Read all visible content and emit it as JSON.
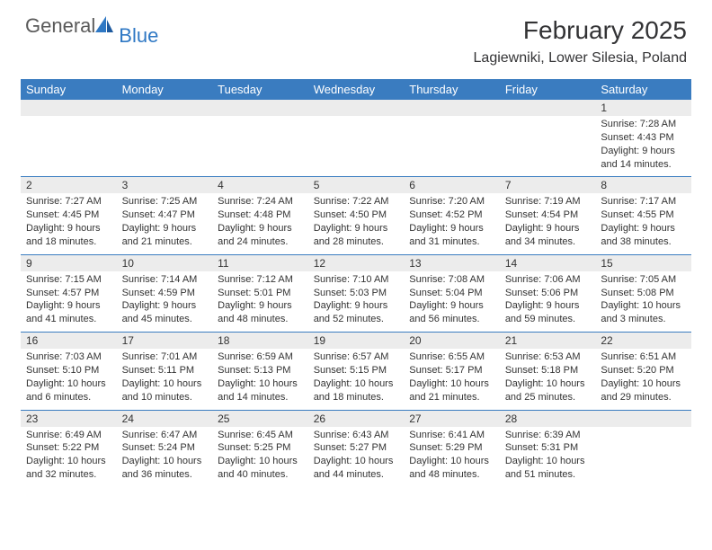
{
  "brand": {
    "text1": "General",
    "text2": "Blue"
  },
  "colors": {
    "header_bg": "#3a7cc0",
    "daynum_bg": "#ececec",
    "empty_bg": "#f1f1f1",
    "rule": "#3a7cc0",
    "text": "#333333",
    "brand_gray": "#5a5a5a",
    "brand_blue": "#2f78c4"
  },
  "title": "February 2025",
  "location": "Lagiewniki, Lower Silesia, Poland",
  "day_headers": [
    "Sunday",
    "Monday",
    "Tuesday",
    "Wednesday",
    "Thursday",
    "Friday",
    "Saturday"
  ],
  "weeks": [
    {
      "nums": [
        "",
        "",
        "",
        "",
        "",
        "",
        "1"
      ],
      "cells": [
        "",
        "",
        "",
        "",
        "",
        "",
        "Sunrise: 7:28 AM\nSunset: 4:43 PM\nDaylight: 9 hours and 14 minutes."
      ]
    },
    {
      "nums": [
        "2",
        "3",
        "4",
        "5",
        "6",
        "7",
        "8"
      ],
      "cells": [
        "Sunrise: 7:27 AM\nSunset: 4:45 PM\nDaylight: 9 hours and 18 minutes.",
        "Sunrise: 7:25 AM\nSunset: 4:47 PM\nDaylight: 9 hours and 21 minutes.",
        "Sunrise: 7:24 AM\nSunset: 4:48 PM\nDaylight: 9 hours and 24 minutes.",
        "Sunrise: 7:22 AM\nSunset: 4:50 PM\nDaylight: 9 hours and 28 minutes.",
        "Sunrise: 7:20 AM\nSunset: 4:52 PM\nDaylight: 9 hours and 31 minutes.",
        "Sunrise: 7:19 AM\nSunset: 4:54 PM\nDaylight: 9 hours and 34 minutes.",
        "Sunrise: 7:17 AM\nSunset: 4:55 PM\nDaylight: 9 hours and 38 minutes."
      ]
    },
    {
      "nums": [
        "9",
        "10",
        "11",
        "12",
        "13",
        "14",
        "15"
      ],
      "cells": [
        "Sunrise: 7:15 AM\nSunset: 4:57 PM\nDaylight: 9 hours and 41 minutes.",
        "Sunrise: 7:14 AM\nSunset: 4:59 PM\nDaylight: 9 hours and 45 minutes.",
        "Sunrise: 7:12 AM\nSunset: 5:01 PM\nDaylight: 9 hours and 48 minutes.",
        "Sunrise: 7:10 AM\nSunset: 5:03 PM\nDaylight: 9 hours and 52 minutes.",
        "Sunrise: 7:08 AM\nSunset: 5:04 PM\nDaylight: 9 hours and 56 minutes.",
        "Sunrise: 7:06 AM\nSunset: 5:06 PM\nDaylight: 9 hours and 59 minutes.",
        "Sunrise: 7:05 AM\nSunset: 5:08 PM\nDaylight: 10 hours and 3 minutes."
      ]
    },
    {
      "nums": [
        "16",
        "17",
        "18",
        "19",
        "20",
        "21",
        "22"
      ],
      "cells": [
        "Sunrise: 7:03 AM\nSunset: 5:10 PM\nDaylight: 10 hours and 6 minutes.",
        "Sunrise: 7:01 AM\nSunset: 5:11 PM\nDaylight: 10 hours and 10 minutes.",
        "Sunrise: 6:59 AM\nSunset: 5:13 PM\nDaylight: 10 hours and 14 minutes.",
        "Sunrise: 6:57 AM\nSunset: 5:15 PM\nDaylight: 10 hours and 18 minutes.",
        "Sunrise: 6:55 AM\nSunset: 5:17 PM\nDaylight: 10 hours and 21 minutes.",
        "Sunrise: 6:53 AM\nSunset: 5:18 PM\nDaylight: 10 hours and 25 minutes.",
        "Sunrise: 6:51 AM\nSunset: 5:20 PM\nDaylight: 10 hours and 29 minutes."
      ]
    },
    {
      "nums": [
        "23",
        "24",
        "25",
        "26",
        "27",
        "28",
        ""
      ],
      "cells": [
        "Sunrise: 6:49 AM\nSunset: 5:22 PM\nDaylight: 10 hours and 32 minutes.",
        "Sunrise: 6:47 AM\nSunset: 5:24 PM\nDaylight: 10 hours and 36 minutes.",
        "Sunrise: 6:45 AM\nSunset: 5:25 PM\nDaylight: 10 hours and 40 minutes.",
        "Sunrise: 6:43 AM\nSunset: 5:27 PM\nDaylight: 10 hours and 44 minutes.",
        "Sunrise: 6:41 AM\nSunset: 5:29 PM\nDaylight: 10 hours and 48 minutes.",
        "Sunrise: 6:39 AM\nSunset: 5:31 PM\nDaylight: 10 hours and 51 minutes.",
        ""
      ]
    }
  ]
}
